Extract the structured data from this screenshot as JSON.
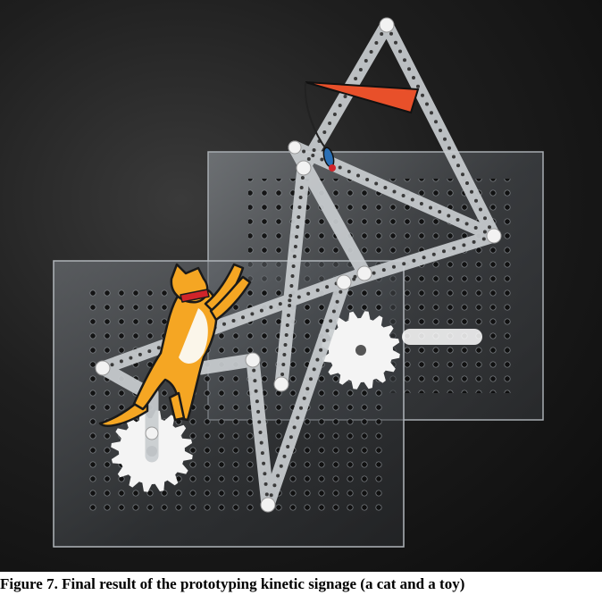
{
  "caption": "Figure 7. Final result of the prototyping kinetic signage (a cat and a toy)",
  "colors": {
    "background": "#1a1a1a",
    "plate": "#c8ccd0",
    "link_bar": "#c9cdd0",
    "gear": "#f4f4f4",
    "cat_body": "#f5a623",
    "cat_belly": "#fbf6ea",
    "cat_collar": "#d0242a",
    "toy_stick": "#e8502a"
  },
  "illustration": {
    "plates": [
      "back-plate",
      "front-plate"
    ],
    "gears": [
      "left-gear",
      "right-gear"
    ],
    "characters": [
      "cat",
      "toy"
    ]
  }
}
